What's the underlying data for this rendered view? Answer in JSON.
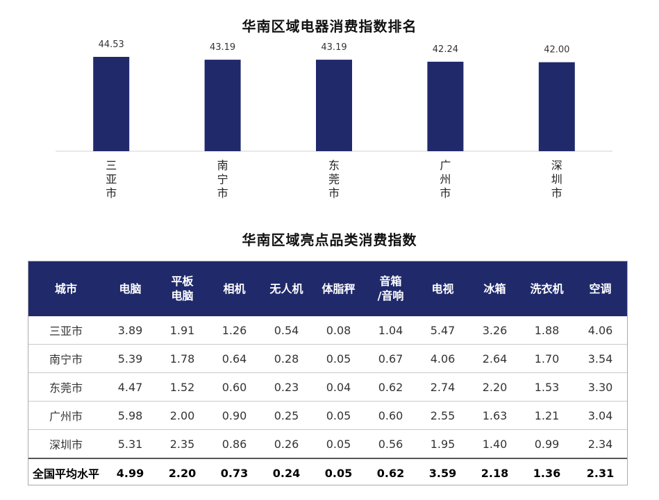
{
  "chart_data": {
    "type": "bar",
    "title": "华南区域电器消费指数排名",
    "categories": [
      "三亚市",
      "南宁市",
      "东莞市",
      "广州市",
      "深圳市"
    ],
    "values": [
      44.53,
      43.19,
      43.19,
      42.24,
      42.0
    ],
    "value_labels": [
      "44.53",
      "43.19",
      "43.19",
      "42.24",
      "42.00"
    ],
    "bar_color": "#202a6b"
  },
  "table": {
    "title": "华南区域亮点品类消费指数",
    "header_color": "#202a6b",
    "headers": [
      "城市",
      "电脑",
      "平板\n电脑",
      "相机",
      "无人机",
      "体脂秤",
      "音箱\n/音响",
      "电视",
      "冰箱",
      "洗衣机",
      "空调"
    ],
    "rows": [
      [
        "三亚市",
        "3.89",
        "1.91",
        "1.26",
        "0.54",
        "0.08",
        "1.04",
        "5.47",
        "3.26",
        "1.88",
        "4.06"
      ],
      [
        "南宁市",
        "5.39",
        "1.78",
        "0.64",
        "0.28",
        "0.05",
        "0.67",
        "4.06",
        "2.64",
        "1.70",
        "3.54"
      ],
      [
        "东莞市",
        "4.47",
        "1.52",
        "0.60",
        "0.23",
        "0.04",
        "0.62",
        "2.74",
        "2.20",
        "1.53",
        "3.30"
      ],
      [
        "广州市",
        "5.98",
        "2.00",
        "0.90",
        "0.25",
        "0.05",
        "0.60",
        "2.55",
        "1.63",
        "1.21",
        "3.04"
      ],
      [
        "深圳市",
        "5.31",
        "2.35",
        "0.86",
        "0.26",
        "0.05",
        "0.56",
        "1.95",
        "1.40",
        "0.99",
        "2.34"
      ]
    ],
    "average_row": [
      "全国平均水平",
      "4.99",
      "2.20",
      "0.73",
      "0.24",
      "0.05",
      "0.62",
      "3.59",
      "2.18",
      "1.36",
      "2.31"
    ]
  }
}
